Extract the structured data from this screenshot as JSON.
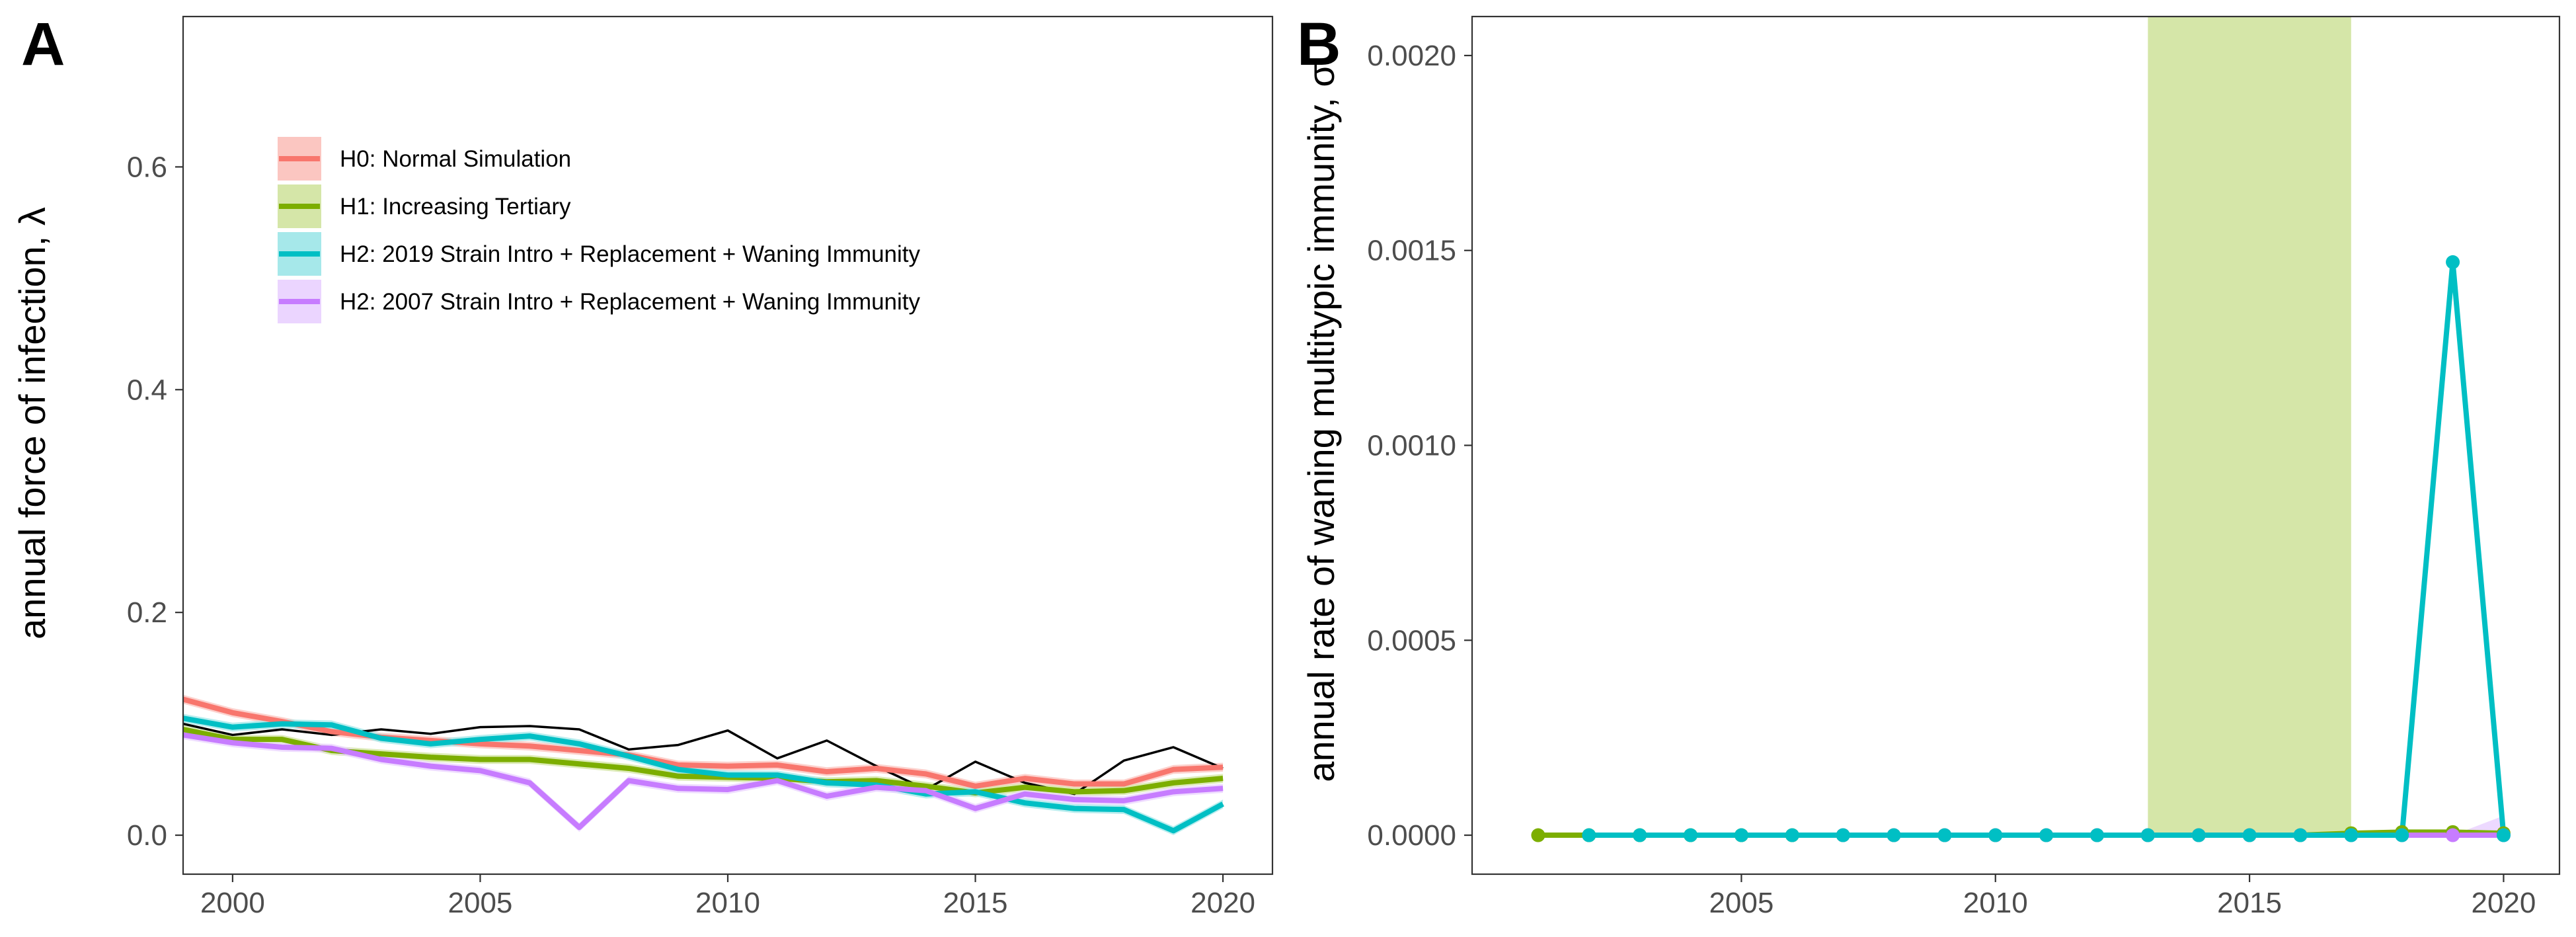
{
  "chart_data": [
    {
      "panel": "A",
      "type": "line",
      "title": "",
      "xlabel": "",
      "ylabel": "annual force of infection, λ",
      "xlim": [
        1999,
        2021
      ],
      "ylim": [
        -0.035,
        0.735
      ],
      "xticks": [
        2000,
        2005,
        2010,
        2015,
        2020
      ],
      "yticks": [
        0.0,
        0.2,
        0.4,
        0.6
      ],
      "ytick_labels": [
        "0.0",
        "0.2",
        "0.4",
        "0.6"
      ],
      "grid": false,
      "legend_position": "top-left",
      "x": [
        1999,
        2000,
        2001,
        2002,
        2003,
        2004,
        2005,
        2006,
        2007,
        2008,
        2009,
        2010,
        2011,
        2012,
        2013,
        2014,
        2015,
        2016,
        2017,
        2018,
        2019,
        2020
      ],
      "series": [
        {
          "name": "",
          "color": "#000000",
          "stroke": 3.5,
          "values": [
            0.1,
            0.09,
            0.095,
            0.09,
            0.095,
            0.091,
            0.097,
            0.098,
            0.095,
            0.077,
            0.081,
            0.094,
            0.069,
            0.085,
            0.062,
            0.041,
            0.066,
            0.047,
            0.037,
            0.067,
            0.079,
            0.06
          ]
        },
        {
          "name": "H0: Normal Simulation",
          "color": "#F8766D",
          "band_color": "#FBC6C1",
          "values": [
            0.122,
            0.11,
            0.102,
            0.093,
            0.088,
            0.085,
            0.082,
            0.08,
            0.076,
            0.072,
            0.063,
            0.062,
            0.063,
            0.057,
            0.06,
            0.055,
            0.044,
            0.051,
            0.046,
            0.046,
            0.059,
            0.061
          ]
        },
        {
          "name": "H1: Increasing Tertiary",
          "color": "#7CAE00",
          "band_color": "#D5E6A8",
          "values": [
            0.095,
            0.086,
            0.086,
            0.076,
            0.073,
            0.07,
            0.068,
            0.068,
            0.064,
            0.06,
            0.053,
            0.052,
            0.051,
            0.048,
            0.049,
            0.044,
            0.038,
            0.043,
            0.039,
            0.04,
            0.047,
            0.051
          ]
        },
        {
          "name": "H2: 2019 Strain Intro + Replacement + Waning Immunity",
          "color": "#00BFC4",
          "band_color": "#A6E8EA",
          "values": [
            0.105,
            0.097,
            0.1,
            0.099,
            0.087,
            0.082,
            0.086,
            0.089,
            0.082,
            0.071,
            0.059,
            0.054,
            0.054,
            0.047,
            0.045,
            0.037,
            0.039,
            0.029,
            0.024,
            0.023,
            0.004,
            0.028
          ]
        },
        {
          "name": "H2: 2007 Strain Intro + Replacement + Waning Immunity",
          "color": "#C77CFF",
          "band_color": "#EBD5FF",
          "values": [
            0.09,
            0.083,
            0.079,
            0.078,
            0.068,
            0.062,
            0.058,
            0.047,
            0.007,
            0.049,
            0.042,
            0.041,
            0.049,
            0.035,
            0.043,
            0.04,
            0.024,
            0.037,
            0.032,
            0.031,
            0.039,
            0.042
          ]
        }
      ]
    },
    {
      "panel": "B",
      "type": "line",
      "title": "",
      "xlabel": "",
      "ylabel": "annual rate of waning multitypic immunity, σ",
      "xlim": [
        1999.7,
        2021.1
      ],
      "ylim": [
        -0.0001,
        0.0021
      ],
      "xticks": [
        2005,
        2010,
        2015,
        2020
      ],
      "yticks": [
        0.0,
        0.0005,
        0.001,
        0.0015,
        0.002
      ],
      "ytick_labels": [
        "0.0000",
        "0.0005",
        "0.0010",
        "0.0015",
        "0.0020"
      ],
      "grid": false,
      "shaded_region": {
        "x_start": 2013,
        "x_end": 2017,
        "color": "#D5E6A8"
      },
      "series": [
        {
          "name": "H1: Increasing Tertiary",
          "color": "#7CAE00",
          "x": [
            2001,
            2002,
            2003,
            2004,
            2005,
            2006,
            2007,
            2008,
            2009,
            2010,
            2011,
            2012,
            2013,
            2014,
            2015,
            2016,
            2017,
            2018,
            2019,
            2020
          ],
          "values": [
            0,
            0,
            0,
            0,
            0,
            0,
            0,
            0,
            0,
            0,
            0,
            0,
            0,
            0,
            0,
            0,
            5e-06,
            8e-06,
            8e-06,
            5e-06
          ]
        },
        {
          "name": "H2: 2007 Strain Intro + Replacement + Waning Immunity",
          "color": "#C77CFF",
          "x": [
            2007,
            2008,
            2009,
            2010,
            2011,
            2012,
            2013,
            2014,
            2015,
            2016,
            2017,
            2018,
            2019,
            2020
          ],
          "values": [
            0,
            0,
            0,
            0,
            0,
            0,
            0,
            0,
            0,
            0,
            0,
            0,
            0,
            0
          ]
        },
        {
          "name": "H2: 2019 Strain Intro + Replacement + Waning Immunity",
          "color": "#00BFC4",
          "x": [
            2002,
            2003,
            2004,
            2005,
            2006,
            2007,
            2008,
            2009,
            2010,
            2011,
            2012,
            2013,
            2014,
            2015,
            2016,
            2017,
            2018,
            2019,
            2020
          ],
          "values": [
            0,
            0,
            0,
            0,
            0,
            0,
            0,
            0,
            0,
            0,
            0,
            0,
            0,
            0,
            0,
            0,
            0,
            0.00147,
            0
          ]
        }
      ]
    }
  ]
}
